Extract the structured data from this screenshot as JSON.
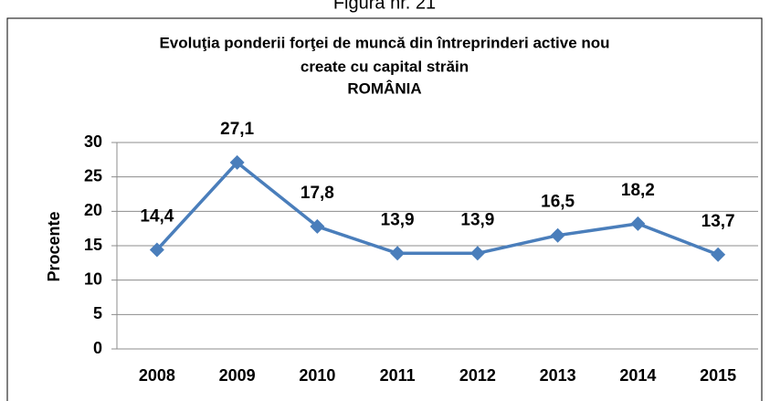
{
  "chart_data": {
    "type": "line",
    "caption": "Figura nr. 21",
    "title": [
      "Evoluţia ponderii forţei de muncă din întreprinderi active nou",
      "create cu capital străin",
      "ROMÂNIA"
    ],
    "y_label": "Procente",
    "categories": [
      "2008",
      "2009",
      "2010",
      "2011",
      "2012",
      "2013",
      "2014",
      "2015"
    ],
    "series": [
      {
        "name": "ROMÂNIA",
        "color": "#4a7ebb",
        "values": [
          14.4,
          27.1,
          17.8,
          13.9,
          13.9,
          16.5,
          18.2,
          13.7
        ],
        "value_labels": [
          "14,4",
          "27,1",
          "17,8",
          "13,9",
          "13,9",
          "16,5",
          "18,2",
          "13,7"
        ]
      }
    ],
    "ylim": [
      0,
      30
    ],
    "yticks": [
      0,
      5,
      10,
      15,
      20,
      25,
      30
    ],
    "grid": true
  }
}
